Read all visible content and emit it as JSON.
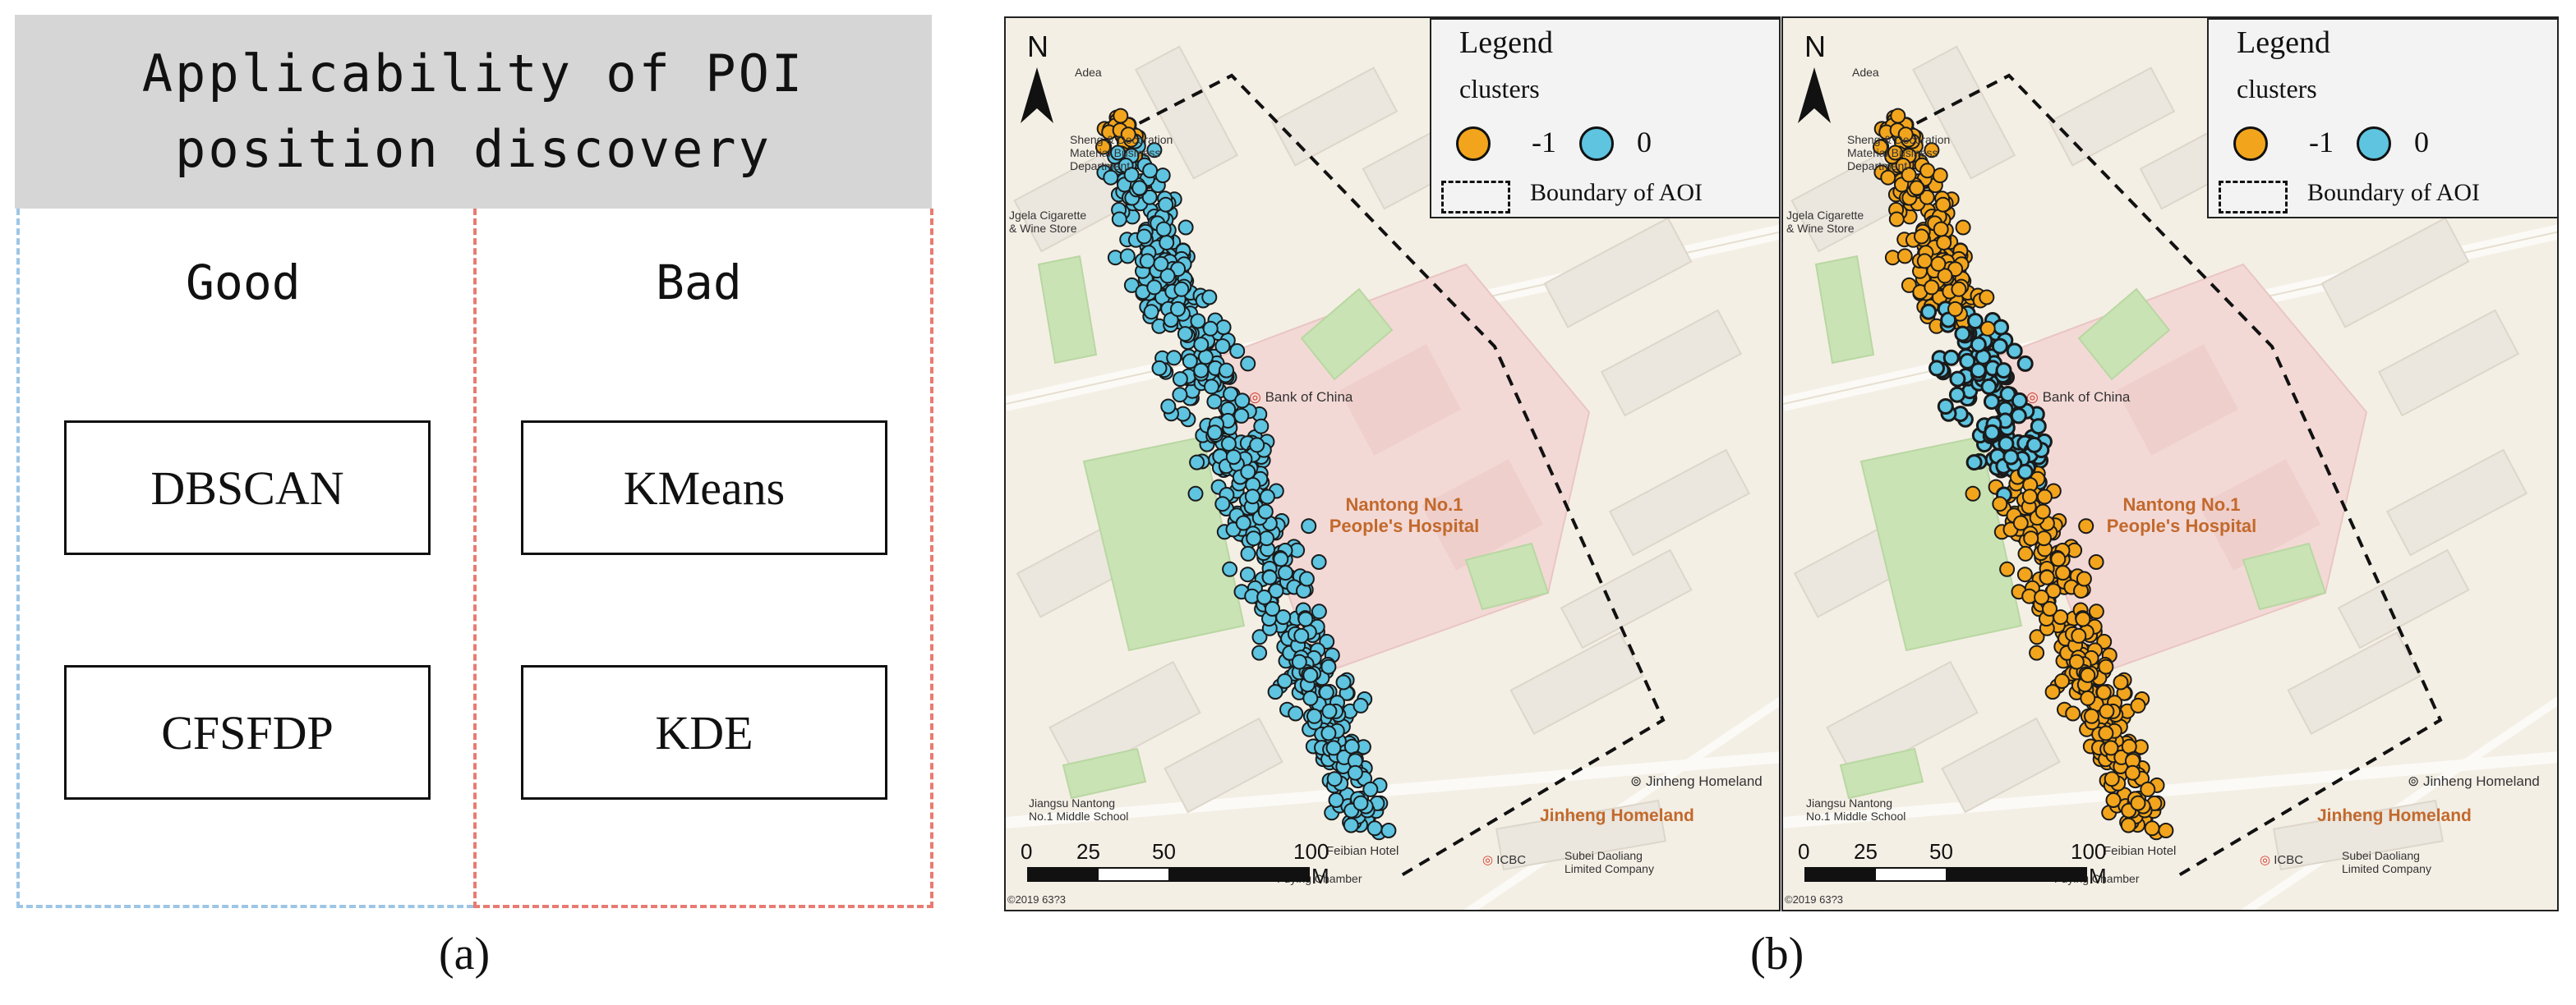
{
  "panel_a": {
    "title_line1": "Applicability of POI",
    "title_line2": "position discovery",
    "good": {
      "label": "Good",
      "items": [
        "DBSCAN",
        "CFSFDP"
      ]
    },
    "bad": {
      "label": "Bad",
      "items": [
        "KMeans",
        "KDE"
      ]
    },
    "caption": "(a)",
    "colors": {
      "good_border": "#9dc6e6",
      "bad_border": "#e87b72",
      "header_bg": "#d6d6d6"
    }
  },
  "panel_b": {
    "caption": "(b)",
    "legend": {
      "title": "Legend",
      "subtitle": "clusters",
      "cluster_noise_label": "-1",
      "cluster_zero_label": "0",
      "boundary_label": "Boundary of AOI"
    },
    "colors": {
      "noise": "#f2a51c",
      "cluster0": "#5ec4e0",
      "boundary": "#111111"
    },
    "map_labels": {
      "north": "N",
      "bank": "Bank of China",
      "hospital_line1": "Nantong No.1",
      "hospital_line2": "People's Hospital",
      "homeland_small": "Jinheng Homeland",
      "homeland_big": "Jinheng Homeland",
      "school_line1": "Jiangsu Nantong",
      "school_line2": "No.1 Middle School",
      "hotel": "Feibian Hotel",
      "icbc": "ICBC",
      "suibei_line1": "Subei Daoliang",
      "suibei_line2": "Limited Company",
      "chamber": "Fuying Chamber",
      "cigarette_line1": "Jgela Cigarette",
      "cigarette_line2": "& Wine Store",
      "deco_line1": "Sheng & Decoration",
      "deco_line2": "Material Business",
      "deco_line3": "Department",
      "adea": "Adea",
      "copyright": "©2019 63?3"
    },
    "scale": {
      "t0": "0",
      "t1": "25",
      "t2": "50",
      "t3": "100",
      "unit": "M"
    }
  }
}
